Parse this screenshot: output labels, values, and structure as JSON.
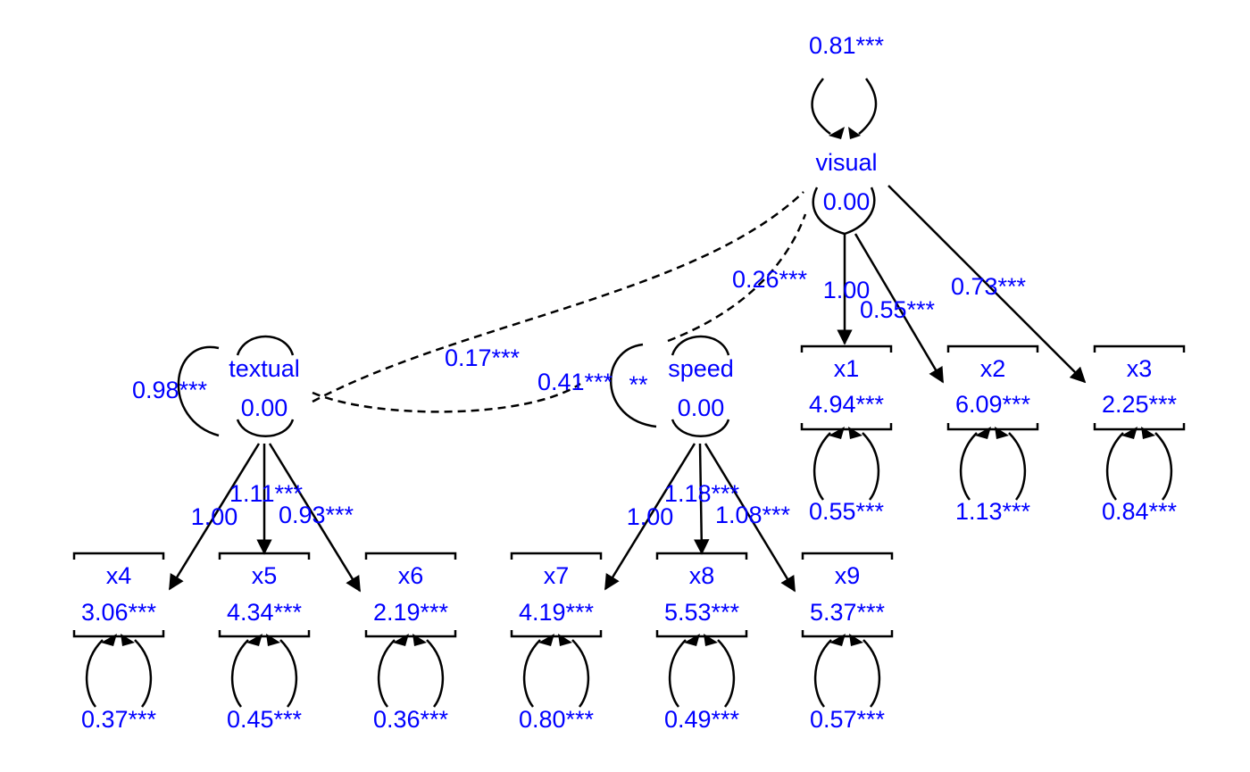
{
  "latents": {
    "visual": {
      "name": "visual",
      "mean": "0.00",
      "variance": "0.81***"
    },
    "textual": {
      "name": "textual",
      "mean": "0.00",
      "variance": "0.98***"
    },
    "speed": {
      "name": "speed",
      "mean": "0.00",
      "variance": "0.41***"
    }
  },
  "indicators": {
    "x1": {
      "name": "x1",
      "intercept": "4.94***",
      "residual": "0.55***"
    },
    "x2": {
      "name": "x2",
      "intercept": "6.09***",
      "residual": "1.13***"
    },
    "x3": {
      "name": "x3",
      "intercept": "2.25***",
      "residual": "0.84***"
    },
    "x4": {
      "name": "x4",
      "intercept": "3.06***",
      "residual": "0.37***"
    },
    "x5": {
      "name": "x5",
      "intercept": "4.34***",
      "residual": "0.45***"
    },
    "x6": {
      "name": "x6",
      "intercept": "2.19***",
      "residual": "0.36***"
    },
    "x7": {
      "name": "x7",
      "intercept": "4.19***",
      "residual": "0.80***"
    },
    "x8": {
      "name": "x8",
      "intercept": "5.53***",
      "residual": "0.49***"
    },
    "x9": {
      "name": "x9",
      "intercept": "5.37***",
      "residual": "0.57***"
    }
  },
  "loadings": {
    "visual_x1": "1.00",
    "visual_x2": "0.55***",
    "visual_x3": "0.73***",
    "textual_x4": "1.00",
    "textual_x5": "1.11***",
    "textual_x6": "0.93***",
    "speed_x7": "1.00",
    "speed_x8": "1.18***",
    "speed_x9": "1.08***"
  },
  "covariances": {
    "visual_textual": "0.26***",
    "textual_speed": "0.17***",
    "visual_speed": "**"
  },
  "colors": {
    "label": "#0000ff",
    "line": "#000000"
  }
}
